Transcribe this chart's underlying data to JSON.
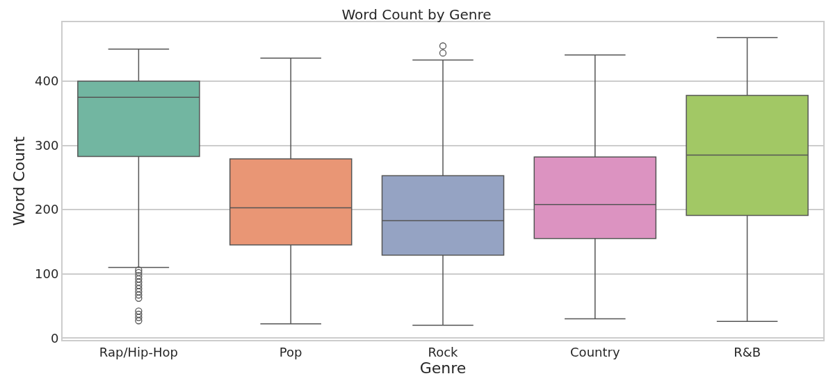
{
  "chart_data": {
    "type": "box",
    "title": "Word Count by Genre",
    "xlabel": "Genre",
    "ylabel": "Word Count",
    "categories": [
      "Rap/Hip-Hop",
      "Pop",
      "Rock",
      "Country",
      "R&B"
    ],
    "colors": [
      "#72b6a1",
      "#e99675",
      "#95a3c3",
      "#dc93c1",
      "#a2c865"
    ],
    "boxes": [
      {
        "low": 110,
        "q1": 283,
        "median": 375,
        "q3": 400,
        "high": 450,
        "outliers": [
          106,
          102,
          97,
          92,
          87,
          82,
          77,
          72,
          67,
          62,
          42,
          37,
          32,
          27
        ]
      },
      {
        "low": 22,
        "q1": 145,
        "median": 203,
        "q3": 279,
        "high": 436
      },
      {
        "low": 20,
        "q1": 129,
        "median": 183,
        "q3": 253,
        "high": 433,
        "outliers": [
          444,
          455
        ]
      },
      {
        "low": 30,
        "q1": 155,
        "median": 208,
        "q3": 282,
        "high": 441
      },
      {
        "low": 26,
        "q1": 191,
        "median": 285,
        "q3": 378,
        "high": 468
      }
    ],
    "ylim": [
      -3,
      492
    ],
    "yticks": [
      0,
      100,
      200,
      300,
      400
    ],
    "grid": "y"
  }
}
